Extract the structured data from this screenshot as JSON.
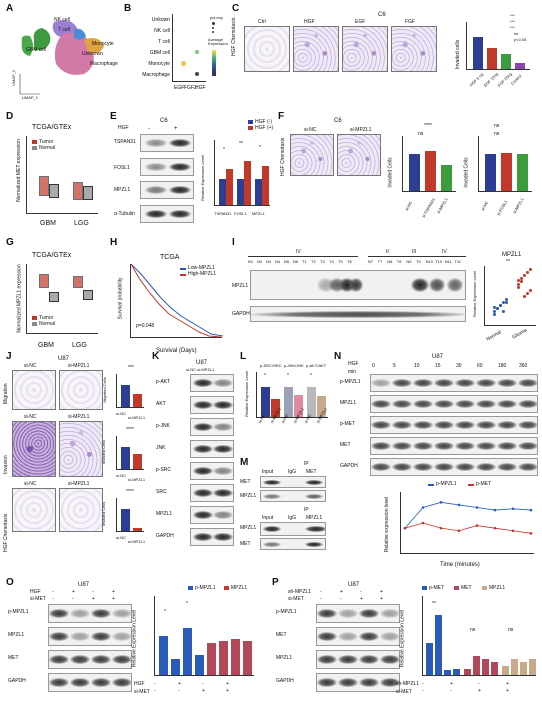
{
  "panels": {
    "A": "A",
    "B": "B",
    "C": "C",
    "D": "D",
    "E": "E",
    "F": "F",
    "G": "G",
    "H": "H",
    "I": "I",
    "J": "J",
    "K": "K",
    "L": "L",
    "M": "M",
    "N": "N",
    "O": "O",
    "P": "P"
  },
  "a": {
    "clusters": [
      "NK cell",
      "T cell",
      "GBM cell",
      "Monocyte",
      "Unknown",
      "Macrophage"
    ],
    "xaxis": "UMAP_1",
    "yaxis": "UMAP_2"
  },
  "b": {
    "rows": [
      "Unkown",
      "NK cell",
      "T cell",
      "GBM cell",
      "Monocyte",
      "Macrophage"
    ],
    "cols": [
      "EGF",
      "FGF2",
      "HGF"
    ],
    "legend_title": "pct.exp",
    "legend_sub": "Average Expression"
  },
  "c": {
    "title": "C6",
    "cols": [
      "Ctrl",
      "HGF",
      "EGF",
      "FGF"
    ],
    "side": "HGF Chemotaxis",
    "ylabel": "Invaded cells",
    "bars": [
      "HGF 5 ng",
      "EGF 10ng",
      "FGF 20ng",
      "Control"
    ],
    "sig": [
      "***",
      "***",
      "***",
      "ns",
      "p<0.05"
    ]
  },
  "d": {
    "title": "TCGA/GTEx",
    "ylabel": "Normalized MET expression",
    "legend": [
      "Tumor",
      "Normal"
    ],
    "x": [
      "GBM",
      "LGG"
    ]
  },
  "e": {
    "title": "C6",
    "hgf": "HGF",
    "signs": [
      "-",
      "+"
    ],
    "rows": [
      "TSPAN31",
      "FOSL1",
      "MPZL1",
      "α-Tubulin"
    ],
    "legend": [
      "HGF (-)",
      "HGF (+)"
    ],
    "x": [
      "TSPAN31",
      "FOSL1",
      "MPZL1"
    ],
    "ylabel": "Relative Expression Level",
    "sig": [
      "*",
      "**",
      "*"
    ]
  },
  "f": {
    "title": "C6",
    "cols": [
      "si-NC",
      "si-MPZL1"
    ],
    "side": "HGF Chemotaxis",
    "y1": "Invaded Cells",
    "y2": "Invaded Cells",
    "x1": [
      "si-NC",
      "si-TSPAN31",
      "si-MPZL1"
    ],
    "x2": [
      "si-NC",
      "si-FOSL1",
      "si-MPZL1"
    ],
    "sig1": [
      "****",
      "ns"
    ],
    "sig2": [
      "ns",
      "ns"
    ]
  },
  "g": {
    "title": "TCGA/GTEx",
    "ylabel": "Normalized MPZL1 expression",
    "legend": [
      "Tumor",
      "Normal"
    ],
    "x": [
      "GBM",
      "LGG"
    ]
  },
  "h": {
    "title": "TCGA",
    "legend": [
      "Low-MPZL1",
      "High-MPZL1"
    ],
    "p": "p=0.048",
    "xlabel": "Survival (Days)",
    "ylabel": "Survival probability"
  },
  "i": {
    "grades1": [
      "IV"
    ],
    "grades2": [
      "II",
      "III",
      "IV"
    ],
    "lanes1": [
      "N1",
      "N2",
      "N3",
      "N4",
      "N5",
      "N6",
      "T1",
      "T2",
      "T3",
      "T4",
      "T5",
      "T6"
    ],
    "lanes2": [
      "N7",
      "T7",
      "N8",
      "T8",
      "N9",
      "T9",
      "N10",
      "T10",
      "N11",
      "T11"
    ],
    "rows": [
      "MPZL1",
      "GAPDH"
    ],
    "chart_title": "MPZL1",
    "sig": "**",
    "x": [
      "Normal",
      "Glioma"
    ],
    "ylabel": "Relative Expression Level"
  },
  "j": {
    "title": "U87",
    "cols": [
      "si-NC",
      "si-MPZL1"
    ],
    "rows": [
      "Migration",
      "Invasion",
      "HGF Chemotaxis"
    ],
    "y": [
      "Migrated Cells",
      "Invaded Cells",
      "Invaded Cells"
    ],
    "x": [
      "si-NC",
      "si-MPZL1"
    ],
    "sig": [
      "***",
      "****",
      "****"
    ]
  },
  "k": {
    "title": "U87",
    "cols": "si-NC si-MPZL1",
    "rows": [
      "p-AKT",
      "AKT",
      "p-JNK",
      "JNK",
      "p-SRC",
      "SRC",
      "MPZL1",
      "GAPDH"
    ]
  },
  "l": {
    "groups": [
      "p-SRC/SRC",
      "p-JNK/JNK",
      "p-AKT/AKT"
    ],
    "x": [
      "si-NC",
      "si-MPZL1",
      "si-NC",
      "si-MPZL1",
      "si-NC",
      "si-MPZL1"
    ],
    "ylabel": "Relative Expression Level",
    "sig": [
      "*",
      "*",
      "*"
    ]
  },
  "m": {
    "ip": "IP",
    "cols": [
      "Input",
      "IgG",
      "MET"
    ],
    "cols2": [
      "Input",
      "IgG",
      "MPZL1"
    ],
    "rows": [
      "MET",
      "MPZL1"
    ],
    "rows2": [
      "MPZL1",
      "MET"
    ]
  },
  "n": {
    "title": "U87",
    "hgf": "HGF",
    "unit": "min",
    "times": [
      "0",
      "5",
      "10",
      "15",
      "30",
      "60",
      "180",
      "360"
    ],
    "rows": [
      "p-MPZL1",
      "MPZL1",
      "p-MET",
      "MET",
      "GAPDH"
    ],
    "legend": [
      "p-MPZL1",
      "p-MET"
    ],
    "xlabel": "Time (minutes)",
    "ylabel": "Relative expression level"
  },
  "o": {
    "title": "U87",
    "hgf": "HGF",
    "simet": "si-MET",
    "hgf_signs": [
      "-",
      "+",
      "-",
      "+"
    ],
    "simet_signs": [
      "-",
      "-",
      "+",
      "+"
    ],
    "rows": [
      "p-MPZL1",
      "MPZL1",
      "MET",
      "GAPDH"
    ],
    "legend": [
      "p-MPZL1",
      "MPZL1"
    ],
    "ylabel": "Relative Expression Level",
    "sig": [
      "*",
      "*"
    ]
  },
  "p": {
    "title": "U87",
    "sh": "sh-MPZL1",
    "simet": "si-MET",
    "sh_signs": [
      "-",
      "+",
      "-",
      "+"
    ],
    "simet_signs": [
      "-",
      "-",
      "+",
      "+"
    ],
    "rows": [
      "p-MPZL1",
      "MET",
      "MPZL1",
      "GAPDH"
    ],
    "legend": [
      "p-MET",
      "MET",
      "MPZL1"
    ],
    "ylabel": "Relative Expression Level",
    "sig": [
      "**",
      "ns",
      "ns"
    ]
  },
  "colors": {
    "navy": "#2c3e93",
    "red": "#c0392b",
    "green": "#3c9b3c",
    "purple": "#8e44ad",
    "tumor": "#c0392b",
    "normal": "#888888",
    "blue": "#2a7bd0",
    "tan": "#c9a98b",
    "pink": "#e08aa0"
  },
  "chart_data": [
    {
      "type": "bar",
      "categories": [
        "HGF 5 ng",
        "EGF 10ng",
        "FGF 20ng",
        "Control"
      ],
      "values": [
        170,
        110,
        80,
        30
      ],
      "ylim": [
        0,
        250
      ]
    },
    {
      "type": "bar",
      "categories": [
        "TSPAN31",
        "FOSL1",
        "MPZL1"
      ],
      "series": [
        {
          "name": "HGF (-)",
          "values": [
            1.0,
            1.0,
            1.0
          ]
        },
        {
          "name": "HGF (+)",
          "values": [
            1.4,
            1.7,
            1.5
          ]
        }
      ],
      "ylim": [
        0,
        2.5
      ]
    },
    {
      "type": "bar",
      "categories": [
        "si-NC",
        "si-TSPAN31",
        "si-MPZL1"
      ],
      "values": [
        1.0,
        1.1,
        0.7
      ],
      "ylim": [
        0,
        1.5
      ]
    },
    {
      "type": "bar",
      "categories": [
        "si-NC",
        "si-FOSL1",
        "si-MPZL1"
      ],
      "values": [
        1.0,
        1.05,
        1.0
      ],
      "ylim": [
        0,
        1.5
      ]
    },
    {
      "type": "line",
      "title": "TCGA",
      "series": [
        {
          "name": "Low-MPZL1"
        },
        {
          "name": "High-MPZL1"
        }
      ]
    },
    {
      "type": "scatter",
      "title": "MPZL1",
      "categories": [
        "Normal",
        "Glioma"
      ],
      "series": [
        {
          "name": "Normal",
          "values": [
            0.4,
            0.5,
            0.6,
            0.7,
            0.8,
            0.3,
            0.5,
            0.6,
            0.4,
            0.7,
            0.55
          ]
        },
        {
          "name": "Glioma",
          "values": [
            1.2,
            1.4,
            1.6,
            1.0,
            1.8,
            1.3,
            1.5,
            0.9,
            1.7,
            1.1,
            1.45
          ]
        }
      ]
    },
    {
      "type": "bar",
      "categories": [
        "si-NC",
        "si-MPZL1"
      ],
      "values": [
        1.0,
        0.6
      ],
      "ylim": [
        0,
        1.5
      ]
    },
    {
      "type": "bar",
      "categories": [
        "si-NC",
        "si-MPZL1"
      ],
      "values": [
        1.0,
        0.7
      ],
      "ylim": [
        0,
        1.5
      ]
    },
    {
      "type": "bar",
      "categories": [
        "si-NC",
        "si-MPZL1"
      ],
      "values": [
        1.0,
        0.15
      ],
      "ylim": [
        0,
        1.5
      ]
    },
    {
      "type": "bar",
      "categories": [
        "p-SRC/SRC",
        "p-JNK/JNK",
        "p-AKT/AKT"
      ],
      "series": [
        {
          "name": "si-NC",
          "values": [
            1.0,
            1.0,
            1.0
          ]
        },
        {
          "name": "si-MPZL1",
          "values": [
            0.6,
            0.75,
            0.7
          ]
        }
      ],
      "ylim": [
        0,
        1.5
      ]
    },
    {
      "type": "line",
      "categories": [
        "0",
        "5",
        "10",
        "15",
        "30",
        "60",
        "180",
        "360"
      ],
      "series": [
        {
          "name": "p-MPZL1",
          "values": [
            1.0,
            1.8,
            2.0,
            1.9,
            1.8,
            1.7,
            1.75,
            1.7
          ]
        },
        {
          "name": "p-MET",
          "values": [
            1.0,
            1.2,
            1.0,
            0.9,
            1.1,
            1.0,
            0.9,
            0.8
          ]
        }
      ]
    },
    {
      "type": "bar",
      "categories": [
        "1",
        "2",
        "3",
        "4"
      ],
      "series": [
        {
          "name": "p-MPZL1",
          "values": [
            1.0,
            0.4,
            1.2,
            0.5
          ]
        },
        {
          "name": "MPZL1",
          "values": [
            0.8,
            0.85,
            0.9,
            0.85
          ]
        }
      ],
      "ylim": [
        0,
        2
      ]
    },
    {
      "type": "bar",
      "categories": [
        "1",
        "2",
        "3",
        "4"
      ],
      "series": [
        {
          "name": "p-MET",
          "values": [
            1.0,
            1.9,
            0.15,
            0.2
          ]
        },
        {
          "name": "MET",
          "values": [
            0.2,
            0.6,
            0.5,
            0.4
          ]
        },
        {
          "name": "MPZL1",
          "values": [
            0.3,
            0.5,
            0.4,
            0.5
          ]
        }
      ],
      "ylim": [
        0,
        2.5
      ]
    }
  ]
}
